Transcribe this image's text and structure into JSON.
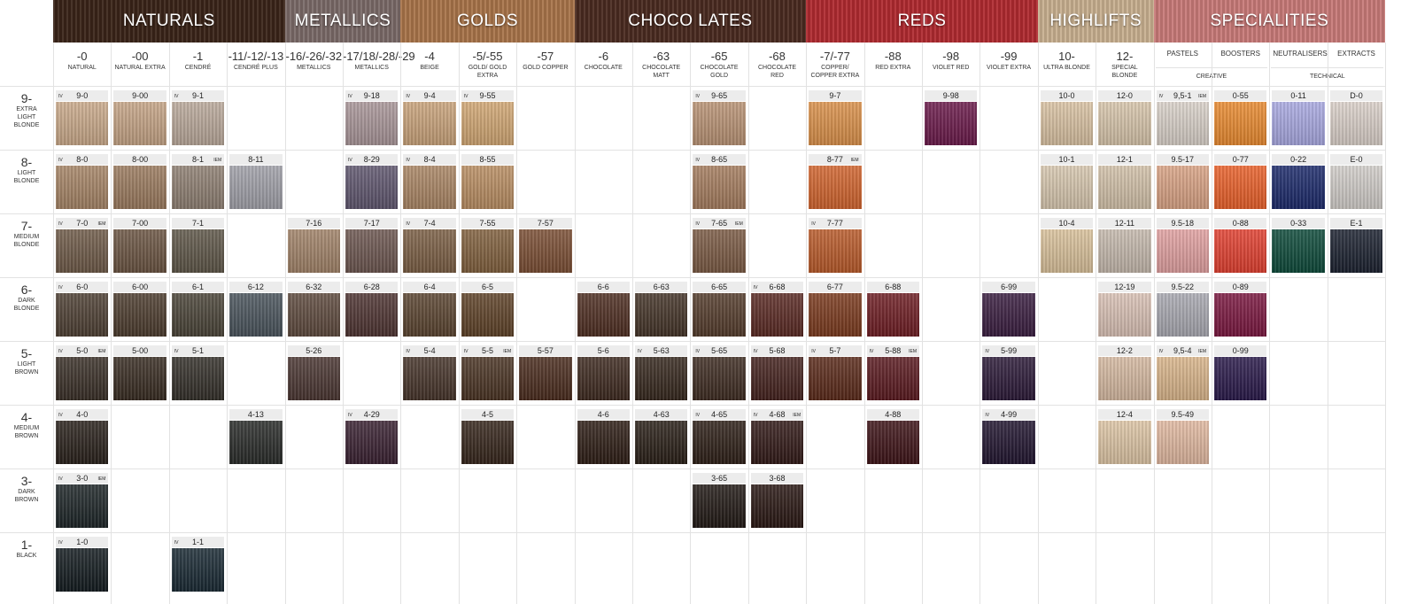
{
  "groups": [
    {
      "name": "NATURALS",
      "color": "#3a2418",
      "columns": [
        {
          "code": "-0",
          "name": "NATURAL"
        },
        {
          "code": "-00",
          "name": "NATURAL EXTRA"
        },
        {
          "code": "-1",
          "name": "CENDRÉ"
        },
        {
          "code": "-11/-12/-13",
          "name": "CENDRÉ PLUS"
        }
      ]
    },
    {
      "name": "METALLICS",
      "color": "#7a6a68",
      "columns": [
        {
          "code": "-16/-26/-32",
          "name": "METALLICS"
        },
        {
          "code": "-17/18/-28/-29",
          "name": "METALLICS"
        }
      ]
    },
    {
      "name": "GOLDS",
      "color": "#a8744a",
      "columns": [
        {
          "code": "-4",
          "name": "BEIGE"
        },
        {
          "code": "-5/-55",
          "name": "GOLD/ GOLD EXTRA"
        },
        {
          "code": "-57",
          "name": "GOLD COPPER"
        }
      ]
    },
    {
      "name": "CHOCO LATES",
      "color": "#4a2a20",
      "columns": [
        {
          "code": "-6",
          "name": "CHOCOLATE"
        },
        {
          "code": "-63",
          "name": "CHOCOLATE MATT"
        },
        {
          "code": "-65",
          "name": "CHOCOLATE GOLD"
        },
        {
          "code": "-68",
          "name": "CHOCOLATE RED"
        }
      ]
    },
    {
      "name": "REDS",
      "color": "#b02a30",
      "columns": [
        {
          "code": "-7/-77",
          "name": "COPPER/ COPPER EXTRA"
        },
        {
          "code": "-88",
          "name": "RED EXTRA"
        },
        {
          "code": "-98",
          "name": "VIOLET RED"
        },
        {
          "code": "-99",
          "name": "VIOLET EXTRA"
        }
      ]
    },
    {
      "name": "HIGHLIFTS",
      "color": "#c8b090",
      "columns": [
        {
          "code": "10-",
          "name": "ULTRA BLONDE"
        },
        {
          "code": "12-",
          "name": "SPECIAL BLONDE"
        }
      ]
    },
    {
      "name": "SPECIALITIES",
      "color": "#c87a78",
      "subgroups": [
        {
          "name": "CREATIVE",
          "columns": [
            {
              "name": "PASTELS"
            },
            {
              "name": "BOOSTERS"
            }
          ]
        },
        {
          "name": "TECHNICAL",
          "columns": [
            {
              "name": "NEUTRALISERS"
            },
            {
              "name": "EXTRACTS"
            }
          ]
        }
      ]
    }
  ],
  "rows": [
    {
      "level": "9-",
      "name": "EXTRA LIGHT BLONDE",
      "cells": [
        {
          "label": "9-0",
          "color": "#c9a98a",
          "iv": "IV"
        },
        {
          "label": "9-00",
          "color": "#c4a385"
        },
        {
          "label": "9-1",
          "color": "#b9a89a",
          "iv": "IV"
        },
        null,
        null,
        {
          "label": "9-18",
          "color": "#a89598",
          "iv": "IV"
        },
        {
          "label": "9-4",
          "color": "#c8a27a",
          "iv": "IV"
        },
        {
          "label": "9-55",
          "color": "#d0a673",
          "iv": "IV"
        },
        null,
        null,
        null,
        {
          "label": "9-65",
          "color": "#b89274",
          "iv": "IV"
        },
        null,
        {
          "label": "9-7",
          "color": "#d9904a"
        },
        null,
        {
          "label": "9-98",
          "color": "#6a1a4a"
        },
        null,
        {
          "label": "10-0",
          "color": "#d8c1a2"
        },
        {
          "label": "12-0",
          "color": "#d6c4aa"
        },
        {
          "label": "9,5-1",
          "color": "#d8d0c8",
          "iv": "IV",
          "iem": "IEM"
        },
        {
          "label": "0-55",
          "color": "#e88a30"
        },
        {
          "label": "0-11",
          "color": "#a8a8e0"
        },
        {
          "label": "D-0",
          "color": "#d9cfc8"
        }
      ]
    },
    {
      "level": "8-",
      "name": "LIGHT BLONDE",
      "cells": [
        {
          "label": "8-0",
          "color": "#a58466",
          "iv": "IV"
        },
        {
          "label": "8-00",
          "color": "#9a7a5e"
        },
        {
          "label": "8-1",
          "color": "#8e7f72",
          "iem": "IEM"
        },
        {
          "label": "8-11",
          "color": "#a0a0a8"
        },
        null,
        {
          "label": "8-29",
          "color": "#5f566e",
          "iv": "IV"
        },
        {
          "label": "8-4",
          "color": "#a98564",
          "iv": "IV"
        },
        {
          "label": "8-55",
          "color": "#b88d62"
        },
        null,
        null,
        null,
        {
          "label": "8-65",
          "color": "#a47c5e",
          "iv": "IV"
        },
        null,
        {
          "label": "8-77",
          "color": "#d0642e",
          "iem": "IEM"
        },
        null,
        null,
        null,
        {
          "label": "10-1",
          "color": "#d6c6ae"
        },
        {
          "label": "12-1",
          "color": "#d1c0a8"
        },
        {
          "label": "9.5-17",
          "color": "#d8a284"
        },
        {
          "label": "0-77",
          "color": "#e8602a"
        },
        {
          "label": "0-22",
          "color": "#1c2a6a"
        },
        {
          "label": "E-0",
          "color": "#d0ccc8"
        }
      ]
    },
    {
      "level": "7-",
      "name": "MEDIUM BLONDE",
      "cells": [
        {
          "label": "7-0",
          "color": "#6e5a48",
          "iv": "IV",
          "iem": "IEM"
        },
        {
          "label": "7-00",
          "color": "#6a5442"
        },
        {
          "label": "7-1",
          "color": "#5e5648"
        },
        null,
        {
          "label": "7-16",
          "color": "#a08268"
        },
        {
          "label": "7-17",
          "color": "#6c5650"
        },
        {
          "label": "7-4",
          "color": "#7a5e44",
          "iv": "IV"
        },
        {
          "label": "7-55",
          "color": "#80603e"
        },
        {
          "label": "7-57",
          "color": "#7a4e34"
        },
        null,
        null,
        {
          "label": "7-65",
          "color": "#7a5a44",
          "iv": "IV",
          "iem": "IEM"
        },
        null,
        {
          "label": "7-77",
          "color": "#b85a2a",
          "iv": "IV"
        },
        null,
        null,
        null,
        {
          "label": "10-4",
          "color": "#d8c09a"
        },
        {
          "label": "12-11",
          "color": "#c4b8ac"
        },
        {
          "label": "9.5-18",
          "color": "#e0a0a0"
        },
        {
          "label": "0-88",
          "color": "#e04030"
        },
        {
          "label": "0-33",
          "color": "#0e4a3a"
        },
        {
          "label": "E-1",
          "color": "#1c2230"
        }
      ]
    },
    {
      "level": "6-",
      "name": "DARK BLONDE",
      "cells": [
        {
          "label": "6-0",
          "color": "#4e4034",
          "iv": "IV"
        },
        {
          "label": "6-00",
          "color": "#4c3c2e"
        },
        {
          "label": "6-1",
          "color": "#4a4438"
        },
        {
          "label": "6-12",
          "color": "#4a545c"
        },
        {
          "label": "6-32",
          "color": "#5e4a3e"
        },
        {
          "label": "6-28",
          "color": "#4e3432"
        },
        {
          "label": "6-4",
          "color": "#5a4430"
        },
        {
          "label": "6-5",
          "color": "#5e4228"
        },
        null,
        {
          "label": "6-6",
          "color": "#4e2e22"
        },
        {
          "label": "6-63",
          "color": "#443428"
        },
        {
          "label": "6-65",
          "color": "#543c2c"
        },
        {
          "label": "6-68",
          "color": "#5a2a24",
          "iv": "IV"
        },
        {
          "label": "6-77",
          "color": "#7a3a1e"
        },
        {
          "label": "6-88",
          "color": "#6e1e24"
        },
        null,
        {
          "label": "6-99",
          "color": "#3a1e40"
        },
        null,
        {
          "label": "12-19",
          "color": "#d8c0b4"
        },
        {
          "label": "9.5-22",
          "color": "#a8a8b0"
        },
        {
          "label": "0-89",
          "color": "#7a1840"
        },
        null,
        null
      ]
    },
    {
      "level": "5-",
      "name": "LIGHT BROWN",
      "cells": [
        {
          "label": "5-0",
          "color": "#3a3028",
          "iv": "IV",
          "iem": "IEM"
        },
        {
          "label": "5-00",
          "color": "#382c22"
        },
        {
          "label": "5-1",
          "color": "#34302a",
          "iv": "IV"
        },
        null,
        {
          "label": "5-26",
          "color": "#4a3632"
        },
        null,
        {
          "label": "5-4",
          "color": "#46342a",
          "iv": "IV"
        },
        {
          "label": "5-5",
          "color": "#4a3424",
          "iv": "IV",
          "iem": "IEM"
        },
        {
          "label": "5-57",
          "color": "#4a2c1e"
        },
        {
          "label": "5-6",
          "color": "#3e2a20"
        },
        {
          "label": "5-63",
          "color": "#36281e",
          "iv": "IV"
        },
        {
          "label": "5-65",
          "color": "#3e2c22",
          "iv": "IV"
        },
        {
          "label": "5-68",
          "color": "#44221e",
          "iv": "IV"
        },
        {
          "label": "5-7",
          "color": "#5a2a1a",
          "iv": "IV"
        },
        {
          "label": "5-88",
          "color": "#5a1a20",
          "iv": "IV",
          "iem": "IEM"
        },
        null,
        {
          "label": "5-99",
          "color": "#2c1a38",
          "iv": "IV"
        },
        null,
        {
          "label": "12-2",
          "color": "#d4b8a0"
        },
        {
          "label": "9,5-4",
          "color": "#d8b48a",
          "iv": "IV",
          "iem": "IEM"
        },
        {
          "label": "0-99",
          "color": "#2a1a4a"
        },
        null,
        null
      ]
    },
    {
      "level": "4-",
      "name": "MEDIUM BROWN",
      "cells": [
        {
          "label": "4-0",
          "color": "#2a221c",
          "iv": "IV"
        },
        null,
        null,
        {
          "label": "4-13",
          "color": "#2a2c2a"
        },
        null,
        {
          "label": "4-29",
          "color": "#3a2232",
          "iv": "IV"
        },
        null,
        {
          "label": "4-5",
          "color": "#36261c"
        },
        null,
        {
          "label": "4-6",
          "color": "#2e1e16"
        },
        {
          "label": "4-63",
          "color": "#2a2018"
        },
        {
          "label": "4-65",
          "color": "#2e2018",
          "iv": "IV"
        },
        {
          "label": "4-68",
          "color": "#321a18",
          "iv": "IV",
          "iem": "IEM"
        },
        null,
        {
          "label": "4-88",
          "color": "#3e1418"
        },
        null,
        {
          "label": "4-99",
          "color": "#221630",
          "iv": "IV"
        },
        null,
        {
          "label": "12-4",
          "color": "#dcc4a4"
        },
        {
          "label": "9.5-49",
          "color": "#e0b8a0"
        },
        null,
        null,
        null
      ]
    },
    {
      "level": "3-",
      "name": "DARK BROWN",
      "cells": [
        {
          "label": "3-0",
          "color": "#1e2628",
          "iv": "IV",
          "iem": "IEM"
        },
        null,
        null,
        null,
        null,
        null,
        null,
        null,
        null,
        null,
        null,
        {
          "label": "3-65",
          "color": "#221a16"
        },
        {
          "label": "3-68",
          "color": "#2a1814"
        },
        null,
        null,
        null,
        null,
        null,
        null,
        null,
        null,
        null,
        null
      ]
    },
    {
      "level": "1-",
      "name": "BLACK",
      "cells": [
        {
          "label": "1-0",
          "color": "#141c20",
          "iv": "IV"
        },
        null,
        {
          "label": "1-1",
          "color": "#1a2a34",
          "iv": "IV"
        },
        null,
        null,
        null,
        null,
        null,
        null,
        null,
        null,
        null,
        null,
        null,
        null,
        null,
        null,
        null,
        null,
        null,
        null,
        null,
        null
      ]
    }
  ]
}
